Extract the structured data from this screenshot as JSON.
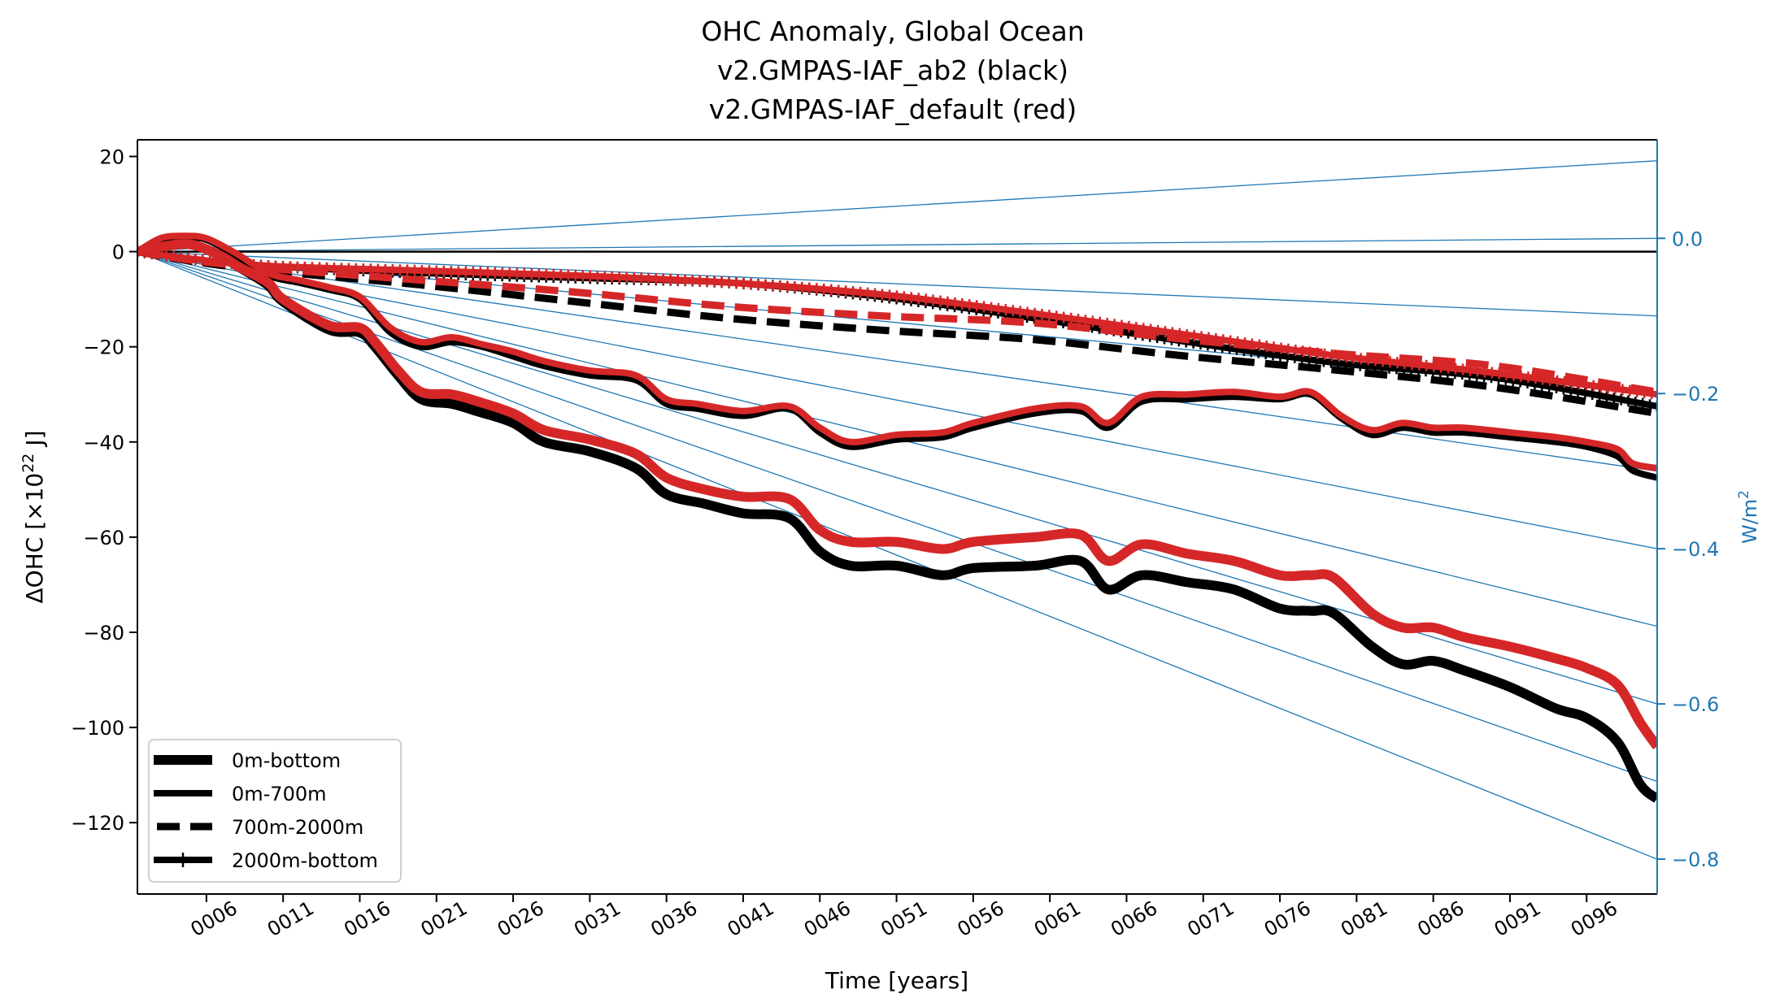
{
  "chart_data": {
    "type": "line",
    "title": [
      "OHC Anomaly, Global Ocean",
      "v2.GMPAS-IAF_ab2 (black)",
      "v2.GMPAS-IAF_default (red)"
    ],
    "xlabel": "Time [years]",
    "ylabel": "ΔOHC [×10²² J]",
    "ylabel_parts": {
      "main": "ΔOHC [×10",
      "sup": "22",
      "tail": " J]"
    },
    "y2label": "W/m²",
    "y2label_parts": {
      "main": "W/m",
      "sup": "2"
    },
    "xlim": [
      1.5,
      100.6
    ],
    "ylim": [
      -135,
      23.5
    ],
    "y2lim": [
      -0.845,
      0.127
    ],
    "x_ticks": [
      6,
      11,
      16,
      21,
      26,
      31,
      36,
      41,
      46,
      51,
      56,
      61,
      66,
      71,
      76,
      81,
      86,
      91,
      96
    ],
    "x_tick_labels": [
      "0006",
      "0011",
      "0016",
      "0021",
      "0026",
      "0031",
      "0036",
      "0041",
      "0046",
      "0051",
      "0056",
      "0061",
      "0066",
      "0071",
      "0076",
      "0081",
      "0086",
      "0091",
      "0096"
    ],
    "y_ticks": [
      20,
      0,
      -20,
      -40,
      -60,
      -80,
      -100,
      -120
    ],
    "y_tick_labels": [
      "20",
      "0",
      "−20",
      "−40",
      "−60",
      "−80",
      "−100",
      "−120"
    ],
    "y2_ticks": [
      0.0,
      -0.2,
      -0.4,
      -0.6,
      -0.8
    ],
    "y2_tick_labels": [
      "0.0",
      "−0.2",
      "−0.4",
      "−0.6",
      "−0.8"
    ],
    "grid": false,
    "legend": {
      "placement": "lower-left",
      "entries": [
        {
          "label": "0m-bottom",
          "style": "solid-thick"
        },
        {
          "label": "0m-700m",
          "style": "solid"
        },
        {
          "label": "700m-2000m",
          "style": "dashed"
        },
        {
          "label": "2000m-bottom",
          "style": "solid-tick-marker"
        }
      ]
    },
    "colors": {
      "run1": "#000000",
      "run2": "#d62728",
      "reference": "#1f77b4"
    },
    "reference_lines": {
      "description": "Constant heat flux reference lines from origin (W/m², right axis)",
      "x_start": 1.5,
      "flux_values": [
        0.1,
        0.0,
        -0.1,
        -0.2,
        -0.3,
        -0.4,
        -0.5,
        -0.6,
        -0.7,
        -0.8
      ]
    },
    "zero_line": 0,
    "series": [
      {
        "name": "0m-bottom",
        "run": "v2.GMPAS-IAF_ab2",
        "color": "#000000",
        "style": "solid-thick",
        "x": [
          1.5,
          3,
          5,
          7,
          8,
          10,
          11,
          14,
          16,
          17,
          18.5,
          20,
          22,
          23.7,
          26,
          28,
          31,
          34,
          36,
          38.5,
          41,
          44,
          46,
          48,
          51,
          54,
          56,
          60,
          63,
          64.8,
          67,
          70,
          73,
          76,
          78,
          79.5,
          82,
          84,
          86,
          88,
          91,
          94,
          96,
          98,
          99.5,
          100.6
        ],
        "y": [
          0,
          1,
          1.5,
          -1,
          -3,
          -7,
          -10.5,
          -16.4,
          -17,
          -20,
          -26,
          -31,
          -32,
          -33.6,
          -36,
          -40,
          -42,
          -45.5,
          -51,
          -53,
          -55,
          -56,
          -63,
          -66,
          -66,
          -68,
          -66.5,
          -66,
          -65,
          -71,
          -68,
          -69.5,
          -71,
          -75,
          -75.5,
          -76,
          -83,
          -86.7,
          -86,
          -88,
          -91.5,
          -96,
          -98,
          -103,
          -112,
          -115
        ]
      },
      {
        "name": "0m-bottom",
        "run": "v2.GMPAS-IAF_default",
        "color": "#d62728",
        "style": "solid-thick",
        "x": [
          1.5,
          3,
          5,
          7,
          8,
          10,
          11,
          14,
          16,
          17,
          18.5,
          20,
          22,
          23.7,
          26,
          28,
          31,
          34,
          36,
          38.5,
          41,
          44,
          46,
          48,
          51,
          54,
          56,
          60,
          63,
          64.8,
          67,
          70,
          73,
          76,
          78,
          79.5,
          82,
          84,
          86,
          88,
          91,
          94,
          96,
          98,
          99.5,
          100.6
        ],
        "y": [
          0,
          1,
          1.5,
          -1,
          -3,
          -6.5,
          -10,
          -15.5,
          -16,
          -19,
          -25,
          -29.5,
          -30,
          -31.5,
          -34,
          -37.5,
          -39.5,
          -42.5,
          -47.5,
          -50,
          -51.5,
          -52,
          -58.5,
          -61,
          -61,
          -62.5,
          -61,
          -60,
          -59.5,
          -65,
          -61.5,
          -63.5,
          -65,
          -68,
          -68,
          -68.5,
          -76,
          -79,
          -79,
          -81,
          -83,
          -85.5,
          -87.5,
          -91,
          -99,
          -104
        ]
      },
      {
        "name": "0m-700m",
        "run": "v2.GMPAS-IAF_ab2",
        "color": "#000000",
        "style": "solid",
        "x": [
          1.5,
          3,
          4.5,
          6,
          8,
          10,
          12,
          14,
          16,
          18,
          20,
          22,
          24,
          26,
          28,
          31,
          34,
          36,
          38,
          41,
          44,
          46,
          48,
          51,
          54,
          56,
          60,
          63,
          64.8,
          67,
          70,
          73,
          76,
          78,
          80,
          82,
          84,
          86,
          88,
          91,
          94,
          96,
          98,
          99,
          100.6
        ],
        "y": [
          0,
          2.5,
          3,
          2.5,
          -1,
          -5,
          -6.5,
          -8,
          -10,
          -17,
          -20,
          -19,
          -20,
          -22,
          -24,
          -26,
          -27,
          -32,
          -33,
          -34.5,
          -33,
          -38,
          -41,
          -39.5,
          -39,
          -37,
          -34,
          -33.5,
          -37,
          -31.5,
          -31,
          -30.5,
          -31,
          -30,
          -35,
          -38.5,
          -37,
          -38,
          -38,
          -39,
          -40,
          -41,
          -43,
          -46,
          -47.5
        ]
      },
      {
        "name": "0m-700m",
        "run": "v2.GMPAS-IAF_default",
        "color": "#d62728",
        "style": "solid",
        "x": [
          1.5,
          3,
          4.5,
          6,
          8,
          10,
          12,
          14,
          16,
          18,
          20,
          22,
          24,
          26,
          28,
          31,
          34,
          36,
          38,
          41,
          44,
          46,
          48,
          51,
          54,
          56,
          60,
          63,
          64.8,
          67,
          70,
          73,
          76,
          78,
          80,
          82,
          84,
          86,
          88,
          91,
          94,
          96,
          98,
          99,
          100.6
        ],
        "y": [
          0,
          2.8,
          3.3,
          2.8,
          -0.5,
          -4.5,
          -6,
          -7.5,
          -9.5,
          -16,
          -19,
          -18,
          -19.5,
          -21,
          -23,
          -25,
          -26,
          -31,
          -32,
          -33.5,
          -32.5,
          -37,
          -40,
          -38.5,
          -38,
          -36,
          -33,
          -32.5,
          -36,
          -30.5,
          -30,
          -29.5,
          -30.5,
          -29.5,
          -34.5,
          -37.5,
          -36,
          -37,
          -37,
          -38,
          -39,
          -40,
          -41.5,
          -44.5,
          -45.5
        ]
      },
      {
        "name": "700m-2000m",
        "run": "v2.GMPAS-IAF_ab2",
        "color": "#000000",
        "style": "dashed",
        "x": [
          1.5,
          5,
          10,
          20,
          30,
          40,
          50,
          60,
          70,
          80,
          90,
          100.6
        ],
        "y": [
          0,
          -2,
          -4,
          -7,
          -10.5,
          -14,
          -16.5,
          -18.5,
          -22,
          -25,
          -28.5,
          -34
        ]
      },
      {
        "name": "700m-2000m",
        "run": "v2.GMPAS-IAF_default",
        "color": "#d62728",
        "style": "dashed",
        "x": [
          1.5,
          5,
          10,
          20,
          30,
          40,
          50,
          60,
          70,
          80,
          90,
          100.6
        ],
        "y": [
          0,
          -1.8,
          -3.5,
          -6,
          -8.5,
          -11.5,
          -13.5,
          -15,
          -18.5,
          -21.5,
          -24,
          -29.5
        ]
      },
      {
        "name": "2000m-bottom",
        "run": "v2.GMPAS-IAF_ab2",
        "color": "#000000",
        "style": "solid-tick-marker",
        "x": [
          1.5,
          5,
          10,
          20,
          30,
          40,
          50,
          60,
          70,
          80,
          90,
          100.6
        ],
        "y": [
          0,
          -1.5,
          -3,
          -4.5,
          -5.5,
          -6.5,
          -9.5,
          -14,
          -19,
          -23.5,
          -26.5,
          -32.5
        ]
      },
      {
        "name": "2000m-bottom",
        "run": "v2.GMPAS-IAF_default",
        "color": "#d62728",
        "style": "solid-tick-marker",
        "x": [
          1.5,
          5,
          10,
          20,
          30,
          40,
          50,
          60,
          70,
          80,
          90,
          100.6
        ],
        "y": [
          0,
          -1.5,
          -3,
          -4,
          -5,
          -6.5,
          -9,
          -13,
          -17.5,
          -22,
          -25.5,
          -30
        ]
      }
    ]
  }
}
